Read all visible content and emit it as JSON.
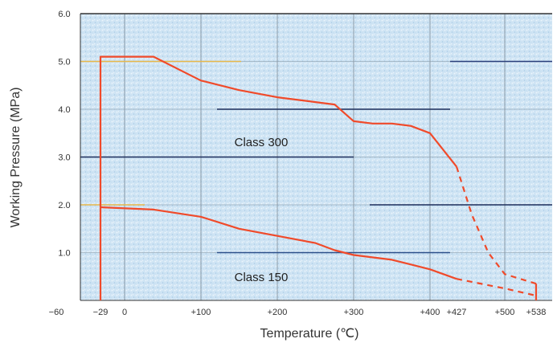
{
  "chart_data": {
    "type": "line",
    "xlabel": "Temperature  (℃)",
    "ylabel": "Working Pressure (MPa)",
    "xlim": [
      -60,
      538
    ],
    "ylim": [
      0,
      6.0
    ],
    "x_tick_values": [
      -60,
      -29,
      0,
      100,
      200,
      300,
      400,
      427,
      500,
      538
    ],
    "x_tick_labels": [
      "−60",
      "−29",
      "0",
      "+100",
      "+200",
      "+300",
      "+400",
      "+427",
      "+500",
      "+538"
    ],
    "y_tick_values": [
      1.0,
      2.0,
      3.0,
      4.0,
      5.0,
      6.0
    ],
    "y_tick_labels": [
      "1.0",
      "2.0",
      "3.0",
      "4.0",
      "5.0",
      "6.0"
    ],
    "grid": true,
    "series": [
      {
        "name": "Class 300",
        "color": "#f04a2a",
        "solid": [
          [
            -29,
            0
          ],
          [
            -29,
            5.1
          ],
          [
            38,
            5.1
          ],
          [
            100,
            4.6
          ],
          [
            150,
            4.4
          ],
          [
            200,
            4.25
          ],
          [
            250,
            4.15
          ],
          [
            275,
            4.1
          ],
          [
            300,
            3.75
          ],
          [
            325,
            3.7
          ],
          [
            350,
            3.7
          ],
          [
            375,
            3.65
          ],
          [
            400,
            3.5
          ],
          [
            427,
            2.8
          ]
        ],
        "dashed": [
          [
            427,
            2.8
          ],
          [
            450,
            1.8
          ],
          [
            475,
            1.0
          ],
          [
            500,
            0.55
          ],
          [
            538,
            0.35
          ]
        ]
      },
      {
        "name": "Class 150",
        "color": "#f04a2a",
        "solid": [
          [
            -29,
            1.95
          ],
          [
            38,
            1.9
          ],
          [
            100,
            1.75
          ],
          [
            150,
            1.5
          ],
          [
            200,
            1.35
          ],
          [
            250,
            1.2
          ],
          [
            275,
            1.05
          ],
          [
            300,
            0.95
          ],
          [
            350,
            0.85
          ],
          [
            400,
            0.65
          ],
          [
            427,
            0.45
          ]
        ],
        "dashed": [
          [
            427,
            0.45
          ],
          [
            500,
            0.25
          ],
          [
            538,
            0.1
          ]
        ],
        "drop": [
          [
            538,
            0.35
          ],
          [
            538,
            0.0
          ]
        ]
      }
    ]
  }
}
